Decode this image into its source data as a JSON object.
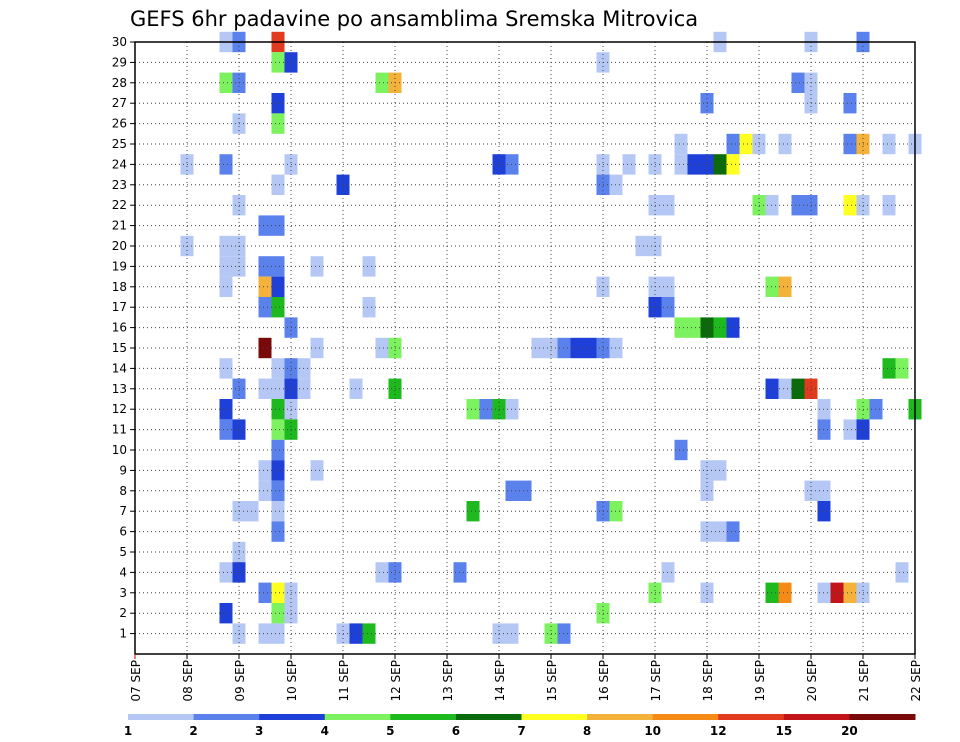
{
  "chart_data": {
    "type": "heatmap",
    "title": "GEFS 6hr padavine po ansamblima Sremska Mitrovica",
    "x_tick_labels": [
      "07 SEP",
      "08 SEP",
      "09 SEP",
      "10 SEP",
      "11 SEP",
      "12 SEP",
      "13 SEP",
      "14 SEP",
      "15 SEP",
      "16 SEP",
      "17 SEP",
      "18 SEP",
      "19 SEP",
      "20 SEP",
      "21 SEP",
      "22 SEP"
    ],
    "y_tick_labels": [
      "1",
      "2",
      "3",
      "4",
      "5",
      "6",
      "7",
      "8",
      "9",
      "10",
      "11",
      "12",
      "13",
      "14",
      "15",
      "16",
      "17",
      "18",
      "19",
      "20",
      "21",
      "22",
      "23",
      "24",
      "25",
      "26",
      "27",
      "28",
      "29",
      "30"
    ],
    "xlim": [
      0,
      60
    ],
    "ylim": [
      0,
      30
    ],
    "x_unit": "6-hour steps from 07 SEP 00Z",
    "y_unit": "ensemble member",
    "grid": true,
    "colorbar": {
      "labels": [
        "1",
        "2",
        "3",
        "4",
        "5",
        "6",
        "7",
        "8",
        "10",
        "12",
        "15",
        "20"
      ],
      "colors": [
        "#b5c8f5",
        "#5b82ec",
        "#1e3fd8",
        "#7df25f",
        "#1eb91e",
        "#0b6b0b",
        "#ffff22",
        "#f5b23a",
        "#f58a15",
        "#e23a1e",
        "#c2151a",
        "#7a0a0a"
      ]
    },
    "cells": [
      [
        7,
        30,
        1
      ],
      [
        8,
        30,
        2
      ],
      [
        11,
        30,
        12
      ],
      [
        45,
        30,
        1
      ],
      [
        52,
        30,
        1
      ],
      [
        56,
        30,
        2
      ],
      [
        11,
        29,
        4
      ],
      [
        12,
        29,
        3
      ],
      [
        36,
        29,
        1
      ],
      [
        7,
        28,
        4
      ],
      [
        8,
        28,
        2
      ],
      [
        19,
        28,
        4
      ],
      [
        20,
        28,
        9
      ],
      [
        51,
        28,
        2
      ],
      [
        52,
        28,
        1
      ],
      [
        11,
        27,
        3
      ],
      [
        44,
        27,
        2
      ],
      [
        52,
        27,
        1
      ],
      [
        55,
        27,
        2
      ],
      [
        8,
        26,
        1
      ],
      [
        11,
        26,
        4
      ],
      [
        42,
        25,
        1
      ],
      [
        46,
        25,
        2
      ],
      [
        47,
        25,
        7
      ],
      [
        48,
        25,
        1
      ],
      [
        50,
        25,
        1
      ],
      [
        55,
        25,
        2
      ],
      [
        56,
        25,
        9
      ],
      [
        58,
        25,
        1
      ],
      [
        60,
        25,
        1
      ],
      [
        4,
        24,
        1
      ],
      [
        7,
        24,
        2
      ],
      [
        12,
        24,
        1
      ],
      [
        28,
        24,
        3
      ],
      [
        29,
        24,
        2
      ],
      [
        36,
        24,
        1
      ],
      [
        38,
        24,
        1
      ],
      [
        40,
        24,
        1
      ],
      [
        42,
        24,
        1
      ],
      [
        43,
        24,
        3
      ],
      [
        44,
        24,
        3
      ],
      [
        45,
        24,
        6
      ],
      [
        46,
        24,
        7
      ],
      [
        11,
        23,
        1
      ],
      [
        16,
        23,
        3
      ],
      [
        36,
        23,
        2
      ],
      [
        37,
        23,
        1
      ],
      [
        8,
        22,
        1
      ],
      [
        40,
        22,
        1
      ],
      [
        41,
        22,
        1
      ],
      [
        48,
        22,
        4
      ],
      [
        49,
        22,
        1
      ],
      [
        51,
        22,
        2
      ],
      [
        52,
        22,
        2
      ],
      [
        55,
        22,
        7
      ],
      [
        56,
        22,
        1
      ],
      [
        58,
        22,
        1
      ],
      [
        10,
        21,
        2
      ],
      [
        11,
        21,
        2
      ],
      [
        4,
        20,
        1
      ],
      [
        7,
        20,
        1
      ],
      [
        8,
        20,
        1
      ],
      [
        39,
        20,
        1
      ],
      [
        40,
        20,
        1
      ],
      [
        7,
        19,
        1
      ],
      [
        8,
        19,
        1
      ],
      [
        10,
        19,
        2
      ],
      [
        11,
        19,
        2
      ],
      [
        14,
        19,
        1
      ],
      [
        18,
        19,
        1
      ],
      [
        7,
        18,
        1
      ],
      [
        10,
        18,
        9
      ],
      [
        11,
        18,
        3
      ],
      [
        36,
        18,
        1
      ],
      [
        40,
        18,
        1
      ],
      [
        41,
        18,
        1
      ],
      [
        49,
        18,
        4
      ],
      [
        50,
        18,
        9
      ],
      [
        10,
        17,
        2
      ],
      [
        11,
        17,
        5
      ],
      [
        18,
        17,
        1
      ],
      [
        40,
        17,
        3
      ],
      [
        41,
        17,
        2
      ],
      [
        12,
        16,
        2
      ],
      [
        42,
        16,
        4
      ],
      [
        43,
        16,
        4
      ],
      [
        44,
        16,
        6
      ],
      [
        45,
        16,
        5
      ],
      [
        46,
        16,
        3
      ],
      [
        10,
        15,
        20
      ],
      [
        14,
        15,
        1
      ],
      [
        19,
        15,
        1
      ],
      [
        20,
        15,
        4
      ],
      [
        31,
        15,
        1
      ],
      [
        32,
        15,
        1
      ],
      [
        33,
        15,
        2
      ],
      [
        34,
        15,
        3
      ],
      [
        35,
        15,
        3
      ],
      [
        36,
        15,
        2
      ],
      [
        37,
        15,
        1
      ],
      [
        7,
        14,
        1
      ],
      [
        11,
        14,
        1
      ],
      [
        12,
        14,
        2
      ],
      [
        13,
        14,
        1
      ],
      [
        58,
        14,
        5
      ],
      [
        59,
        14,
        4
      ],
      [
        8,
        13,
        2
      ],
      [
        10,
        13,
        1
      ],
      [
        11,
        13,
        1
      ],
      [
        12,
        13,
        3
      ],
      [
        13,
        13,
        1
      ],
      [
        17,
        13,
        1
      ],
      [
        20,
        13,
        5
      ],
      [
        49,
        13,
        3
      ],
      [
        50,
        13,
        1
      ],
      [
        51,
        13,
        6
      ],
      [
        52,
        13,
        12
      ],
      [
        7,
        12,
        3
      ],
      [
        11,
        12,
        5
      ],
      [
        12,
        12,
        1
      ],
      [
        26,
        12,
        4
      ],
      [
        27,
        12,
        2
      ],
      [
        28,
        12,
        5
      ],
      [
        29,
        12,
        1
      ],
      [
        53,
        12,
        1
      ],
      [
        56,
        12,
        4
      ],
      [
        57,
        12,
        2
      ],
      [
        60,
        12,
        5
      ],
      [
        7,
        11,
        2
      ],
      [
        8,
        11,
        3
      ],
      [
        11,
        11,
        4
      ],
      [
        12,
        11,
        5
      ],
      [
        53,
        11,
        2
      ],
      [
        55,
        11,
        1
      ],
      [
        56,
        11,
        3
      ],
      [
        11,
        10,
        2
      ],
      [
        42,
        10,
        2
      ],
      [
        10,
        9,
        1
      ],
      [
        11,
        9,
        3
      ],
      [
        14,
        9,
        1
      ],
      [
        44,
        9,
        1
      ],
      [
        45,
        9,
        1
      ],
      [
        10,
        8,
        1
      ],
      [
        11,
        8,
        2
      ],
      [
        29,
        8,
        2
      ],
      [
        30,
        8,
        2
      ],
      [
        44,
        8,
        1
      ],
      [
        52,
        8,
        1
      ],
      [
        53,
        8,
        1
      ],
      [
        8,
        7,
        1
      ],
      [
        9,
        7,
        1
      ],
      [
        11,
        7,
        1
      ],
      [
        26,
        7,
        5
      ],
      [
        36,
        7,
        2
      ],
      [
        37,
        7,
        4
      ],
      [
        53,
        7,
        3
      ],
      [
        11,
        6,
        2
      ],
      [
        44,
        6,
        1
      ],
      [
        45,
        6,
        1
      ],
      [
        46,
        6,
        2
      ],
      [
        8,
        5,
        1
      ],
      [
        7,
        4,
        1
      ],
      [
        8,
        4,
        3
      ],
      [
        19,
        4,
        1
      ],
      [
        20,
        4,
        2
      ],
      [
        25,
        4,
        2
      ],
      [
        41,
        4,
        1
      ],
      [
        59,
        4,
        1
      ],
      [
        10,
        3,
        2
      ],
      [
        11,
        3,
        7
      ],
      [
        12,
        3,
        1
      ],
      [
        40,
        3,
        4
      ],
      [
        44,
        3,
        1
      ],
      [
        49,
        3,
        5
      ],
      [
        50,
        3,
        10
      ],
      [
        53,
        3,
        1
      ],
      [
        54,
        3,
        15
      ],
      [
        55,
        3,
        9
      ],
      [
        56,
        3,
        1
      ],
      [
        7,
        2,
        3
      ],
      [
        11,
        2,
        4
      ],
      [
        12,
        2,
        1
      ],
      [
        36,
        2,
        4
      ],
      [
        8,
        1,
        1
      ],
      [
        10,
        1,
        1
      ],
      [
        11,
        1,
        1
      ],
      [
        16,
        1,
        1
      ],
      [
        17,
        1,
        3
      ],
      [
        18,
        1,
        5
      ],
      [
        28,
        1,
        1
      ],
      [
        29,
        1,
        1
      ],
      [
        32,
        1,
        4
      ],
      [
        33,
        1,
        2
      ]
    ]
  }
}
